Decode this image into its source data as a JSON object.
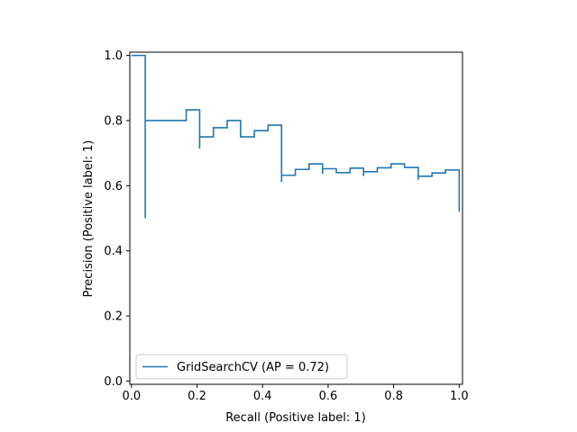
{
  "chart_data": {
    "type": "line",
    "step": "post",
    "xlabel": "Recall (Positive label: 1)",
    "ylabel": "Precision (Positive label: 1)",
    "xlim": [
      -0.005,
      1.01
    ],
    "ylim": [
      -0.01,
      1.01
    ],
    "xticks": [
      "0.0",
      "0.2",
      "0.4",
      "0.6",
      "0.8",
      "1.0"
    ],
    "yticks": [
      "0.0",
      "0.2",
      "0.4",
      "0.6",
      "0.8",
      "1.0"
    ],
    "grid": false,
    "legend_position": "lower left",
    "series": [
      {
        "name": "GridSearchCV (AP = 0.72)",
        "color": "#1f77b4",
        "points": [
          [
            0.0,
            1.0
          ],
          [
            0.042,
            1.0
          ],
          [
            0.042,
            0.5
          ],
          [
            0.042,
            0.8
          ],
          [
            0.167,
            0.8
          ],
          [
            0.167,
            0.833
          ],
          [
            0.208,
            0.833
          ],
          [
            0.208,
            0.714
          ],
          [
            0.208,
            0.75
          ],
          [
            0.25,
            0.75
          ],
          [
            0.25,
            0.778
          ],
          [
            0.292,
            0.778
          ],
          [
            0.292,
            0.8
          ],
          [
            0.333,
            0.8
          ],
          [
            0.333,
            0.75
          ],
          [
            0.375,
            0.75
          ],
          [
            0.375,
            0.769
          ],
          [
            0.417,
            0.769
          ],
          [
            0.417,
            0.786
          ],
          [
            0.458,
            0.786
          ],
          [
            0.458,
            0.611
          ],
          [
            0.458,
            0.632
          ],
          [
            0.5,
            0.632
          ],
          [
            0.5,
            0.65
          ],
          [
            0.542,
            0.65
          ],
          [
            0.542,
            0.667
          ],
          [
            0.583,
            0.667
          ],
          [
            0.583,
            0.636
          ],
          [
            0.583,
            0.652
          ],
          [
            0.625,
            0.652
          ],
          [
            0.625,
            0.64
          ],
          [
            0.667,
            0.64
          ],
          [
            0.667,
            0.654
          ],
          [
            0.708,
            0.654
          ],
          [
            0.708,
            0.63
          ],
          [
            0.708,
            0.643
          ],
          [
            0.75,
            0.643
          ],
          [
            0.75,
            0.655
          ],
          [
            0.792,
            0.655
          ],
          [
            0.792,
            0.667
          ],
          [
            0.833,
            0.667
          ],
          [
            0.833,
            0.656
          ],
          [
            0.875,
            0.656
          ],
          [
            0.875,
            0.618
          ],
          [
            0.875,
            0.629
          ],
          [
            0.917,
            0.629
          ],
          [
            0.917,
            0.639
          ],
          [
            0.958,
            0.639
          ],
          [
            0.958,
            0.648
          ],
          [
            1.0,
            0.648
          ],
          [
            1.0,
            0.52
          ]
        ]
      }
    ]
  }
}
